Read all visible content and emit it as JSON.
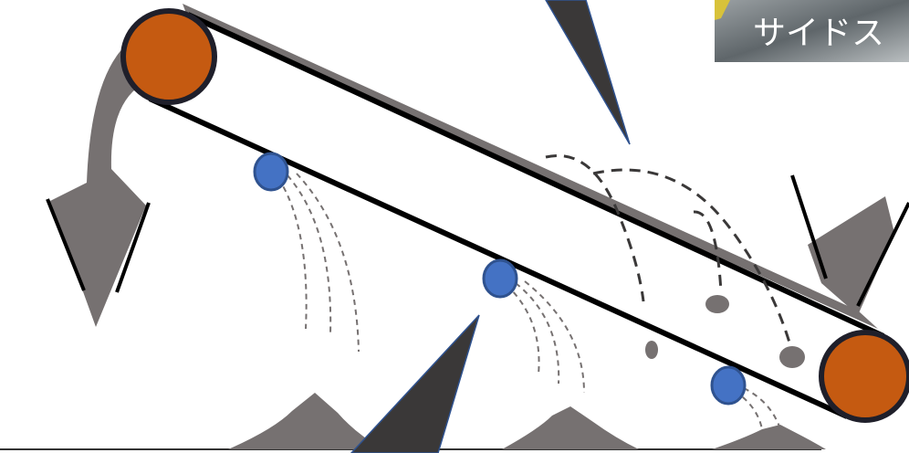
{
  "thumbnail": {
    "label": "サイドス"
  }
}
